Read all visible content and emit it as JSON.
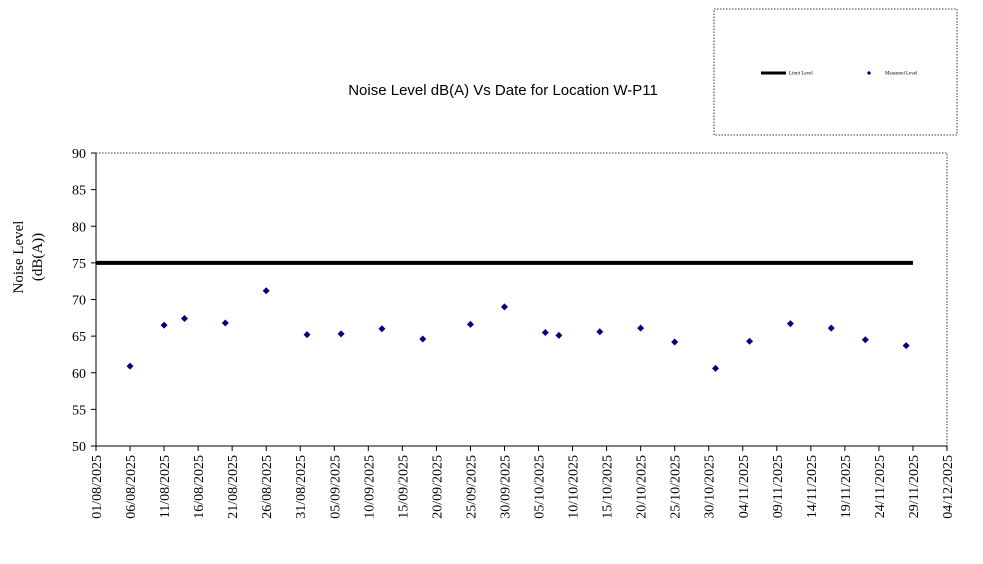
{
  "chart_data": {
    "type": "scatter",
    "title": "Noise Level dB(A) Vs Date for Location W-P11",
    "ylabel_line1": "Noise Level",
    "ylabel_line2": "(dB(A))",
    "xlabel": "",
    "ylim": [
      50,
      90
    ],
    "yticks": [
      50,
      55,
      60,
      65,
      70,
      75,
      80,
      85,
      90
    ],
    "x_axis_type": "date",
    "xlim": [
      "2025-08-01",
      "2025-12-04"
    ],
    "xticks": [
      "01/08/2025",
      "06/08/2025",
      "11/08/2025",
      "16/08/2025",
      "21/08/2025",
      "26/08/2025",
      "31/08/2025",
      "05/09/2025",
      "10/09/2025",
      "15/09/2025",
      "20/09/2025",
      "25/09/2025",
      "30/09/2025",
      "05/10/2025",
      "10/10/2025",
      "15/10/2025",
      "20/10/2025",
      "25/10/2025",
      "30/10/2025",
      "04/11/2025",
      "09/11/2025",
      "14/11/2025",
      "19/11/2025",
      "24/11/2025",
      "29/11/2025",
      "04/12/2025"
    ],
    "grid": false,
    "legend_position": "top-right",
    "series": [
      {
        "name": "Limit Level",
        "kind": "line",
        "color": "#000000",
        "x": [
          "2025-08-01",
          "2025-11-29"
        ],
        "y": [
          75,
          75
        ]
      },
      {
        "name": "Measured Level",
        "kind": "scatter",
        "color": "#000080",
        "x": [
          "2025-08-06",
          "2025-08-11",
          "2025-08-14",
          "2025-08-20",
          "2025-08-26",
          "2025-09-01",
          "2025-09-06",
          "2025-09-12",
          "2025-09-18",
          "2025-09-25",
          "2025-09-30",
          "2025-10-06",
          "2025-10-08",
          "2025-10-14",
          "2025-10-20",
          "2025-10-25",
          "2025-10-31",
          "2025-11-05",
          "2025-11-11",
          "2025-11-17",
          "2025-11-22",
          "2025-11-28"
        ],
        "y": [
          60.9,
          66.5,
          67.4,
          66.8,
          71.2,
          65.2,
          65.3,
          66.0,
          64.6,
          66.6,
          69.0,
          65.5,
          65.1,
          65.6,
          66.1,
          64.2,
          60.6,
          64.3,
          66.7,
          66.1,
          64.5,
          63.7
        ]
      }
    ]
  }
}
